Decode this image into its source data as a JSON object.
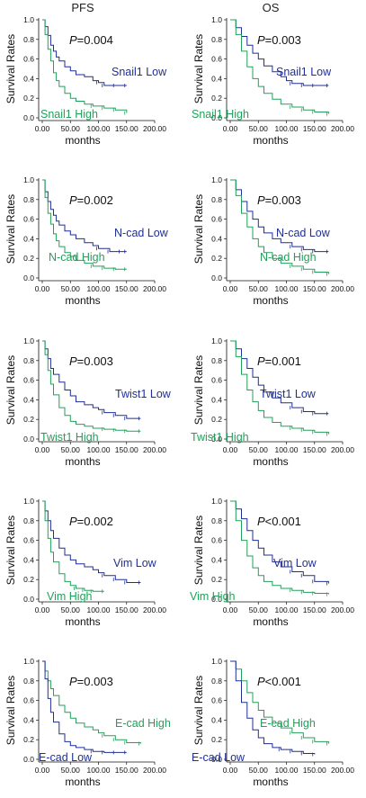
{
  "column_titles": [
    "PFS",
    "OS"
  ],
  "colors": {
    "low": "#1f2f96",
    "high": "#22a05a",
    "axis": "#111111"
  },
  "chart_data": [
    {
      "type": "line",
      "panel": "PFS",
      "pvalue_prefix": "P",
      "pvalue_text": "=0.004",
      "ylabel": "Survival Rates",
      "xlabel": "months",
      "xlim": [
        0,
        200
      ],
      "ylim": [
        0,
        1
      ],
      "xticks": [
        "0.00",
        "50.00",
        "100.00",
        "150.00",
        "200.00"
      ],
      "yticks": [
        "0.0",
        "0.2",
        "0.4",
        "0.6",
        "0.8",
        "1.0"
      ],
      "series": [
        {
          "name": "Snail1 Low",
          "group": "low",
          "x": [
            0,
            5,
            10,
            15,
            20,
            25,
            30,
            40,
            50,
            60,
            75,
            90,
            100,
            110,
            130,
            150
          ],
          "y": [
            1.0,
            0.93,
            0.84,
            0.74,
            0.68,
            0.62,
            0.58,
            0.52,
            0.48,
            0.44,
            0.42,
            0.38,
            0.36,
            0.33,
            0.33,
            0.33
          ]
        },
        {
          "name": "Snail1 High",
          "group": "high",
          "x": [
            0,
            5,
            10,
            15,
            20,
            25,
            30,
            40,
            50,
            60,
            75,
            90,
            110,
            130,
            150
          ],
          "y": [
            1.0,
            0.85,
            0.7,
            0.58,
            0.46,
            0.38,
            0.32,
            0.25,
            0.2,
            0.17,
            0.14,
            0.12,
            0.1,
            0.08,
            0.05
          ]
        }
      ]
    },
    {
      "type": "line",
      "panel": "OS",
      "pvalue_prefix": "P",
      "pvalue_text": "=0.003",
      "ylabel": "Survival Rates",
      "xlabel": "months",
      "xlim": [
        0,
        200
      ],
      "ylim": [
        0,
        1
      ],
      "xticks": [
        "0.00",
        "50.00",
        "100.00",
        "150.00",
        "200.00"
      ],
      "yticks": [
        "0.0",
        "0.2",
        "0.4",
        "0.6",
        "0.8",
        "1.0"
      ],
      "series": [
        {
          "name": "Snail1 Low",
          "group": "low",
          "x": [
            0,
            10,
            20,
            30,
            40,
            50,
            60,
            75,
            90,
            100,
            110,
            130,
            150,
            175
          ],
          "y": [
            1.0,
            0.92,
            0.83,
            0.74,
            0.66,
            0.6,
            0.53,
            0.47,
            0.42,
            0.38,
            0.35,
            0.33,
            0.33,
            0.33
          ]
        },
        {
          "name": "Snail1 High",
          "group": "high",
          "x": [
            0,
            10,
            20,
            30,
            40,
            50,
            60,
            75,
            90,
            110,
            130,
            150,
            175
          ],
          "y": [
            1.0,
            0.85,
            0.68,
            0.52,
            0.4,
            0.32,
            0.25,
            0.19,
            0.14,
            0.11,
            0.08,
            0.06,
            0.04
          ]
        }
      ]
    },
    {
      "type": "line",
      "panel": "PFS",
      "pvalue_prefix": "P",
      "pvalue_text": "=0.002",
      "ylabel": "Survival Rates",
      "xlabel": "months",
      "xlim": [
        0,
        200
      ],
      "ylim": [
        0,
        1
      ],
      "xticks": [
        "0.00",
        "50.00",
        "100.00",
        "150.00",
        "200.00"
      ],
      "yticks": [
        "0.0",
        "0.2",
        "0.4",
        "0.6",
        "0.8",
        "1.0"
      ],
      "series": [
        {
          "name": "N-cad Low",
          "group": "low",
          "x": [
            0,
            5,
            10,
            15,
            20,
            25,
            30,
            40,
            50,
            60,
            75,
            90,
            100,
            120,
            140,
            150
          ],
          "y": [
            1.0,
            0.88,
            0.78,
            0.7,
            0.64,
            0.58,
            0.54,
            0.48,
            0.44,
            0.4,
            0.36,
            0.33,
            0.3,
            0.27,
            0.27,
            0.27
          ]
        },
        {
          "name": "N-cad High",
          "group": "high",
          "x": [
            0,
            5,
            10,
            15,
            20,
            25,
            30,
            40,
            50,
            60,
            75,
            90,
            110,
            130,
            150
          ],
          "y": [
            1.0,
            0.82,
            0.66,
            0.55,
            0.45,
            0.38,
            0.32,
            0.26,
            0.22,
            0.18,
            0.15,
            0.12,
            0.1,
            0.09,
            0.09
          ]
        }
      ]
    },
    {
      "type": "line",
      "panel": "OS",
      "pvalue_prefix": "P",
      "pvalue_text": "=0.003",
      "ylabel": "Survival Rates",
      "xlabel": "months",
      "xlim": [
        0,
        200
      ],
      "ylim": [
        0,
        1
      ],
      "xticks": [
        "0.00",
        "50.00",
        "100.00",
        "150.00",
        "200.00"
      ],
      "yticks": [
        "0.0",
        "0.2",
        "0.4",
        "0.6",
        "0.8",
        "1.0"
      ],
      "series": [
        {
          "name": "N-cad Low",
          "group": "low",
          "x": [
            0,
            10,
            20,
            30,
            40,
            50,
            60,
            75,
            90,
            110,
            130,
            150,
            175
          ],
          "y": [
            1.0,
            0.9,
            0.78,
            0.68,
            0.6,
            0.52,
            0.46,
            0.4,
            0.36,
            0.32,
            0.29,
            0.27,
            0.27
          ]
        },
        {
          "name": "N-cad High",
          "group": "high",
          "x": [
            0,
            10,
            20,
            30,
            40,
            50,
            60,
            75,
            90,
            110,
            130,
            150,
            175
          ],
          "y": [
            1.0,
            0.84,
            0.66,
            0.52,
            0.4,
            0.32,
            0.26,
            0.2,
            0.15,
            0.12,
            0.09,
            0.06,
            0.04
          ]
        }
      ]
    },
    {
      "type": "line",
      "panel": "PFS",
      "pvalue_prefix": "P",
      "pvalue_text": "=0.003",
      "ylabel": "Survival Rates",
      "xlabel": "months",
      "xlim": [
        0,
        200
      ],
      "ylim": [
        0,
        1
      ],
      "xticks": [
        "0.00",
        "50.00",
        "100.00",
        "150.00",
        "200.00"
      ],
      "yticks": [
        "0.0",
        "0.2",
        "0.4",
        "0.6",
        "0.8",
        "1.0"
      ],
      "series": [
        {
          "name": "Twist1 Low",
          "group": "low",
          "x": [
            0,
            5,
            10,
            15,
            20,
            30,
            40,
            50,
            60,
            75,
            90,
            100,
            110,
            130,
            150,
            175
          ],
          "y": [
            1.0,
            0.92,
            0.82,
            0.72,
            0.66,
            0.58,
            0.5,
            0.44,
            0.38,
            0.35,
            0.32,
            0.3,
            0.27,
            0.24,
            0.21,
            0.21
          ]
        },
        {
          "name": "Twist1 High",
          "group": "high",
          "x": [
            0,
            5,
            10,
            15,
            20,
            30,
            40,
            50,
            60,
            75,
            90,
            110,
            130,
            150,
            175
          ],
          "y": [
            1.0,
            0.86,
            0.7,
            0.56,
            0.45,
            0.32,
            0.24,
            0.18,
            0.15,
            0.13,
            0.11,
            0.1,
            0.09,
            0.08,
            0.08
          ]
        }
      ]
    },
    {
      "type": "line",
      "panel": "OS",
      "pvalue_prefix": "P",
      "pvalue_text": "=0.001",
      "ylabel": "Survival Rates",
      "xlabel": "months",
      "xlim": [
        0,
        200
      ],
      "ylim": [
        0,
        1
      ],
      "xticks": [
        "0.00",
        "50.00",
        "100.00",
        "150.00",
        "200.00"
      ],
      "yticks": [
        "0.0",
        "0.2",
        "0.4",
        "0.6",
        "0.8",
        "1.0"
      ],
      "series": [
        {
          "name": "Twist1 Low",
          "group": "low",
          "x": [
            0,
            10,
            20,
            30,
            40,
            50,
            60,
            75,
            90,
            110,
            130,
            150,
            175
          ],
          "y": [
            1.0,
            0.92,
            0.82,
            0.72,
            0.63,
            0.55,
            0.48,
            0.42,
            0.37,
            0.32,
            0.28,
            0.26,
            0.26
          ]
        },
        {
          "name": "Twist1 High",
          "group": "high",
          "x": [
            0,
            10,
            20,
            30,
            40,
            50,
            60,
            75,
            90,
            110,
            130,
            150,
            175
          ],
          "y": [
            1.0,
            0.84,
            0.66,
            0.5,
            0.38,
            0.29,
            0.22,
            0.17,
            0.13,
            0.11,
            0.09,
            0.07,
            0.05
          ]
        }
      ]
    },
    {
      "type": "line",
      "panel": "PFS",
      "pvalue_prefix": "P",
      "pvalue_text": "=0.002",
      "ylabel": "Survival Rates",
      "xlabel": "months",
      "xlim": [
        0,
        200
      ],
      "ylim": [
        0,
        1
      ],
      "xticks": [
        "0.00",
        "50.00",
        "100.00",
        "150.00",
        "200.00"
      ],
      "yticks": [
        "0.0",
        "0.2",
        "0.4",
        "0.6",
        "0.8",
        "1.0"
      ],
      "series": [
        {
          "name": "Vim Low",
          "group": "low",
          "x": [
            0,
            5,
            10,
            15,
            20,
            30,
            40,
            50,
            60,
            75,
            90,
            100,
            110,
            130,
            150,
            175
          ],
          "y": [
            1.0,
            0.9,
            0.8,
            0.7,
            0.62,
            0.52,
            0.45,
            0.4,
            0.36,
            0.33,
            0.3,
            0.27,
            0.24,
            0.2,
            0.17,
            0.17
          ]
        },
        {
          "name": "Vim High",
          "group": "high",
          "x": [
            0,
            5,
            10,
            15,
            20,
            30,
            40,
            50,
            60,
            75,
            90,
            110
          ],
          "y": [
            1.0,
            0.8,
            0.62,
            0.48,
            0.38,
            0.26,
            0.18,
            0.14,
            0.11,
            0.09,
            0.08,
            0.08
          ]
        }
      ]
    },
    {
      "type": "line",
      "panel": "OS",
      "pvalue_prefix": "P",
      "pvalue_text": "<0.001",
      "ylabel": "Survival Rates",
      "xlabel": "months",
      "xlim": [
        0,
        200
      ],
      "ylim": [
        0,
        1
      ],
      "xticks": [
        "0.00",
        "50.00",
        "100.00",
        "150.00",
        "200.00"
      ],
      "yticks": [
        "0.0",
        "0.2",
        "0.4",
        "0.6",
        "0.8",
        "1.0"
      ],
      "series": [
        {
          "name": "Vim Low",
          "group": "low",
          "x": [
            0,
            10,
            20,
            30,
            40,
            50,
            60,
            75,
            90,
            110,
            130,
            150,
            175
          ],
          "y": [
            1.0,
            0.92,
            0.82,
            0.7,
            0.6,
            0.52,
            0.45,
            0.38,
            0.33,
            0.28,
            0.24,
            0.18,
            0.16
          ]
        },
        {
          "name": "Vim High",
          "group": "high",
          "x": [
            0,
            10,
            20,
            30,
            40,
            50,
            60,
            75,
            90,
            110,
            130,
            150,
            175
          ],
          "y": [
            1.0,
            0.8,
            0.6,
            0.44,
            0.32,
            0.24,
            0.18,
            0.14,
            0.11,
            0.09,
            0.07,
            0.06,
            0.05
          ]
        }
      ]
    },
    {
      "type": "line",
      "panel": "PFS",
      "pvalue_prefix": "P",
      "pvalue_text": "=0.003",
      "ylabel": "Survival Rates",
      "xlabel": "months",
      "xlim": [
        0,
        200
      ],
      "ylim": [
        0,
        1
      ],
      "xticks": [
        "0.00",
        "50.00",
        "100.00",
        "150.00",
        "200.00"
      ],
      "yticks": [
        "0.0",
        "0.2",
        "0.4",
        "0.6",
        "0.8",
        "1.0"
      ],
      "series": [
        {
          "name": "E-cad High",
          "group": "high",
          "x": [
            0,
            5,
            10,
            15,
            20,
            30,
            40,
            50,
            60,
            75,
            90,
            100,
            110,
            130,
            150,
            175
          ],
          "y": [
            1.0,
            0.9,
            0.8,
            0.72,
            0.65,
            0.55,
            0.48,
            0.42,
            0.37,
            0.33,
            0.3,
            0.27,
            0.24,
            0.2,
            0.17,
            0.16
          ]
        },
        {
          "name": "E-cad Low",
          "group": "low",
          "x": [
            0,
            5,
            10,
            15,
            20,
            30,
            40,
            50,
            60,
            75,
            90,
            110,
            130,
            150
          ],
          "y": [
            1.0,
            0.82,
            0.62,
            0.48,
            0.38,
            0.26,
            0.18,
            0.14,
            0.12,
            0.1,
            0.08,
            0.07,
            0.07,
            0.07
          ]
        }
      ]
    },
    {
      "type": "line",
      "panel": "OS",
      "pvalue_prefix": "P",
      "pvalue_text": "<0.001",
      "ylabel": "Survival Rates",
      "xlabel": "months",
      "xlim": [
        0,
        200
      ],
      "ylim": [
        0,
        1
      ],
      "xticks": [
        "0.00",
        "50.00",
        "100.00",
        "150.00",
        "200.00"
      ],
      "yticks": [
        "0.0",
        "0.2",
        "0.4",
        "0.6",
        "0.8",
        "1.0"
      ],
      "series": [
        {
          "name": "E-cad High",
          "group": "high",
          "x": [
            0,
            10,
            20,
            30,
            40,
            50,
            60,
            75,
            90,
            110,
            130,
            150,
            175
          ],
          "y": [
            1.0,
            0.92,
            0.8,
            0.68,
            0.58,
            0.5,
            0.43,
            0.37,
            0.32,
            0.27,
            0.22,
            0.18,
            0.16
          ]
        },
        {
          "name": "E-cad Low",
          "group": "low",
          "x": [
            0,
            10,
            20,
            30,
            40,
            50,
            60,
            75,
            90,
            110,
            130,
            150
          ],
          "y": [
            1.0,
            0.8,
            0.58,
            0.42,
            0.3,
            0.22,
            0.16,
            0.12,
            0.1,
            0.08,
            0.06,
            0.05
          ]
        }
      ]
    }
  ]
}
